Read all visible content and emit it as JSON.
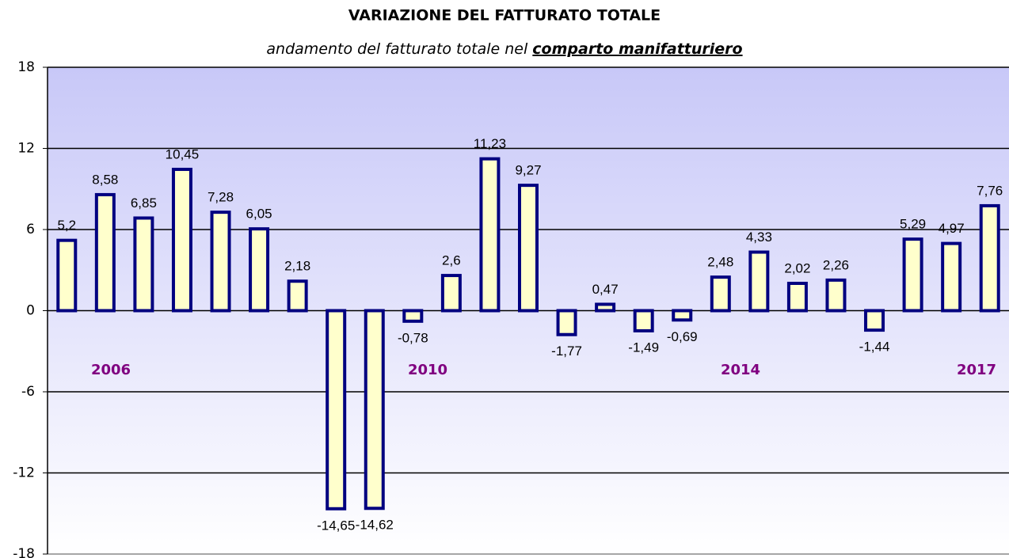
{
  "chart_data": {
    "type": "bar",
    "title": "VARIAZIONE DEL FATTURATO TOTALE",
    "subtitle": {
      "plain": "andamento del fatturato totale nel ",
      "emphasis": "comparto manifatturiero"
    },
    "categories": [
      null,
      null,
      null,
      null,
      null,
      null,
      null,
      null,
      null,
      null,
      null,
      null,
      null,
      null,
      null,
      null,
      null,
      null,
      null,
      null,
      null,
      null,
      null,
      null,
      null
    ],
    "values": [
      5.2,
      8.58,
      6.85,
      10.45,
      7.28,
      6.05,
      2.18,
      -14.65,
      -14.62,
      -0.78,
      2.6,
      11.23,
      9.27,
      -1.77,
      0.47,
      -1.49,
      -0.69,
      2.48,
      4.33,
      2.02,
      2.26,
      -1.44,
      5.29,
      4.97,
      7.76
    ],
    "value_labels": [
      "5,2",
      "8,58",
      "6,85",
      "10,45",
      "7,28",
      "6,05",
      "2,18",
      "-14,65",
      "-14,62",
      "-0,78",
      "2,6",
      "11,23",
      "9,27",
      "-1,77",
      "0,47",
      "-1,49",
      "-0,69",
      "2,48",
      "4,33",
      "2,02",
      "2,26",
      "-1,44",
      "5,29",
      "4,97",
      "7,76"
    ],
    "color": "#ffffcc",
    "edge_color": "#000080",
    "ylim": [
      -18,
      18
    ],
    "yticks": [
      -18,
      -12,
      -6,
      0,
      6,
      12,
      18
    ],
    "grid": true,
    "annotations": [
      "2006",
      "2010",
      "2014",
      "2017"
    ]
  }
}
